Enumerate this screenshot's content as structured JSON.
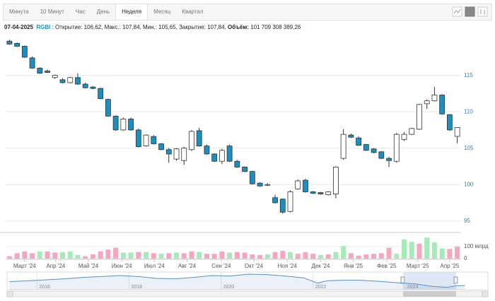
{
  "tabs": [
    "Минута",
    "10 Минут",
    "Час",
    "День",
    "Неделя",
    "Месяц",
    "Квартал"
  ],
  "active_tab": 4,
  "info": {
    "date": "07-04-2025",
    "ticker": "RGBI",
    "details": ": Открытие: 106,62, Макс.: 107,84, Мин.: 105,65, Закрытие: 107,84,",
    "volume_label": "Объём:",
    "volume": "101 709 308 389,26"
  },
  "chart_data": {
    "type": "candlestick",
    "open": [
      119.7,
      119.4,
      119.0,
      117.4,
      116.0,
      115.6,
      114.7,
      114.4,
      114.0,
      114.7,
      113.8,
      113.4,
      113.2,
      111.7,
      109.4,
      107.5,
      109.0,
      107.5,
      105.3,
      106.6,
      105.6,
      104.8,
      103.5,
      103.3,
      104.8,
      107.4,
      105.3,
      104.2,
      103.2,
      105.3,
      103.2,
      102.4,
      101.8,
      100.2,
      99.9,
      98.2,
      98.0,
      96.3,
      99.4,
      100.6,
      99.0,
      98.9,
      98.6,
      98.7,
      103.6,
      106.8,
      106.4,
      105.5,
      104.9,
      104.5,
      103.6,
      103.2,
      106.2,
      106.9,
      107.6,
      111.1,
      111.5,
      112.3,
      109.6,
      106.62
    ],
    "high": [
      119.9,
      119.5,
      119.1,
      117.6,
      116.1,
      115.8,
      115.1,
      114.6,
      114.8,
      115.3,
      114.0,
      113.5,
      113.3,
      111.8,
      109.5,
      109.2,
      109.2,
      107.7,
      106.9,
      106.8,
      105.7,
      105.0,
      105.0,
      105.2,
      107.5,
      107.8,
      105.5,
      104.3,
      104.9,
      105.5,
      103.4,
      102.5,
      101.9,
      100.3,
      100.2,
      98.6,
      98.1,
      99.2,
      100.7,
      100.8,
      99.1,
      99.0,
      99.1,
      102.5,
      107.6,
      107.0,
      106.6,
      105.6,
      105.0,
      104.6,
      103.8,
      107.1,
      107.2,
      107.8,
      111.1,
      111.7,
      113.4,
      112.4,
      109.7,
      107.84
    ],
    "low": [
      119.2,
      118.9,
      117.4,
      115.9,
      115.2,
      115.3,
      114.5,
      113.9,
      113.9,
      113.7,
      113.2,
      113.1,
      111.7,
      109.3,
      107.4,
      107.4,
      107.4,
      105.1,
      105.2,
      105.5,
      104.7,
      103.0,
      103.3,
      102.7,
      104.6,
      105.2,
      104.1,
      103.1,
      102.8,
      103.1,
      102.3,
      101.7,
      100.0,
      99.7,
      99.8,
      97.4,
      96.0,
      96.2,
      99.3,
      98.9,
      98.7,
      98.6,
      98.5,
      98.1,
      103.4,
      106.4,
      105.3,
      104.6,
      104.3,
      103.5,
      102.4,
      103.0,
      106.0,
      106.8,
      107.5,
      110.4,
      111.4,
      109.6,
      107.4,
      105.65
    ],
    "close": [
      119.3,
      119.0,
      117.5,
      116.0,
      115.3,
      115.4,
      115.0,
      114.0,
      114.7,
      113.8,
      113.3,
      113.2,
      111.8,
      109.4,
      107.5,
      109.0,
      107.5,
      105.2,
      106.8,
      105.6,
      104.8,
      104.2,
      104.9,
      105.0,
      107.3,
      105.3,
      104.2,
      103.2,
      104.7,
      103.2,
      102.4,
      101.8,
      100.1,
      99.8,
      100.0,
      97.5,
      96.2,
      99.0,
      100.5,
      99.0,
      98.8,
      98.7,
      99.0,
      102.4,
      106.9,
      106.5,
      105.4,
      104.7,
      104.4,
      103.6,
      103.3,
      106.9,
      106.9,
      107.7,
      111.0,
      111.5,
      112.3,
      109.7,
      107.5,
      107.84
    ],
    "up_color": "#ffffff",
    "down_color": "#1a8fc0",
    "outline_color": "#333333",
    "ylim": [
      94,
      120.5
    ],
    "yticks": [
      95,
      100,
      105,
      110,
      115
    ],
    "grid": true,
    "xlim": [
      -0.5,
      59.5
    ],
    "xticks": [
      {
        "value": 2,
        "label": "Март '24"
      },
      {
        "value": 6.1,
        "label": "Апр '24"
      },
      {
        "value": 10.4,
        "label": "Май '24"
      },
      {
        "value": 14.8,
        "label": "Июн '24"
      },
      {
        "value": 19.1,
        "label": "Июл '24"
      },
      {
        "value": 23.4,
        "label": "Авг '24"
      },
      {
        "value": 27.9,
        "label": "Сен '24"
      },
      {
        "value": 32.2,
        "label": "Окт '24"
      },
      {
        "value": 36.6,
        "label": "Ноя '24"
      },
      {
        "value": 41,
        "label": "Дек '24"
      },
      {
        "value": 45.3,
        "label": "Янв '25"
      },
      {
        "value": 49.7,
        "label": "Фев '25"
      },
      {
        "value": 53.8,
        "label": "Март '25"
      },
      {
        "value": 58,
        "label": "Апр '25"
      }
    ],
    "volume": {
      "values": [
        20,
        45,
        60,
        45,
        60,
        60,
        50,
        55,
        60,
        30,
        20,
        35,
        60,
        75,
        90,
        50,
        50,
        55,
        55,
        45,
        40,
        45,
        50,
        45,
        60,
        55,
        40,
        40,
        60,
        50,
        55,
        50,
        35,
        30,
        35,
        55,
        65,
        55,
        40,
        55,
        40,
        30,
        35,
        55,
        105,
        45,
        25,
        35,
        40,
        45,
        90,
        40,
        160,
        140,
        125,
        175,
        135,
        85,
        80,
        100
      ],
      "colors": [
        "#f7a6bf",
        "#f7a6bf",
        "#f7a6bf",
        "#f7a6bf",
        "#a6eab8",
        "#f7a6bf",
        "#f7a6bf",
        "#a6eab8",
        "#a6eab8",
        "#a6eab8",
        "#f7a6bf",
        "#f7a6bf",
        "#f7a6bf",
        "#f7a6bf",
        "#f7a6bf",
        "#a6eab8",
        "#a6eab8",
        "#f7a6bf",
        "#a6eab8",
        "#f7a6bf",
        "#a6eab8",
        "#f7a6bf",
        "#a6eab8",
        "#f7a6bf",
        "#f7a6bf",
        "#a6eab8",
        "#f7a6bf",
        "#f7a6bf",
        "#f7a6bf",
        "#a6eab8",
        "#f7a6bf",
        "#f7a6bf",
        "#f7a6bf",
        "#f7a6bf",
        "#a6eab8",
        "#f7a6bf",
        "#f7a6bf",
        "#a6eab8",
        "#f7a6bf",
        "#f7a6bf",
        "#f7a6bf",
        "#a6eab8",
        "#f7a6bf",
        "#a6eab8",
        "#a6eab8",
        "#f7a6bf",
        "#f7a6bf",
        "#f7a6bf",
        "#f7a6bf",
        "#f7a6bf",
        "#f7a6bf",
        "#a6eab8",
        "#a6eab8",
        "#a6eab8",
        "#f7a6bf",
        "#a6eab8",
        "#a6eab8",
        "#a6eab8",
        "#f7a6bf",
        "#f7a6bf"
      ],
      "ylim": [
        0,
        206
      ],
      "yticks": [
        0,
        {
          "value": 100,
          "label": "100 млрд"
        }
      ]
    },
    "navigator": {
      "x": [
        2015.4,
        2015.8,
        2016.2,
        2016.6,
        2017.0,
        2017.4,
        2017.8,
        2018.2,
        2018.6,
        2019.0,
        2019.4,
        2019.8,
        2020.2,
        2020.6,
        2021.0,
        2021.4,
        2021.8,
        2022.1,
        2022.3,
        2022.6,
        2023.0,
        2023.4,
        2023.8,
        2024.2,
        2024.6,
        2024.9,
        2025.1,
        2025.3
      ],
      "values": [
        124,
        128,
        132,
        136,
        142,
        146,
        150,
        146,
        138,
        136,
        142,
        150,
        148,
        156,
        154,
        148,
        140,
        118,
        128,
        130,
        130,
        126,
        120,
        115,
        104,
        100,
        106,
        108
      ],
      "color": "#5a8fc0",
      "xlim": [
        2015.35,
        2025.8
      ],
      "ylim": [
        90,
        165
      ],
      "xticks": [
        2016,
        2018,
        2020,
        2022,
        2024
      ]
    }
  }
}
